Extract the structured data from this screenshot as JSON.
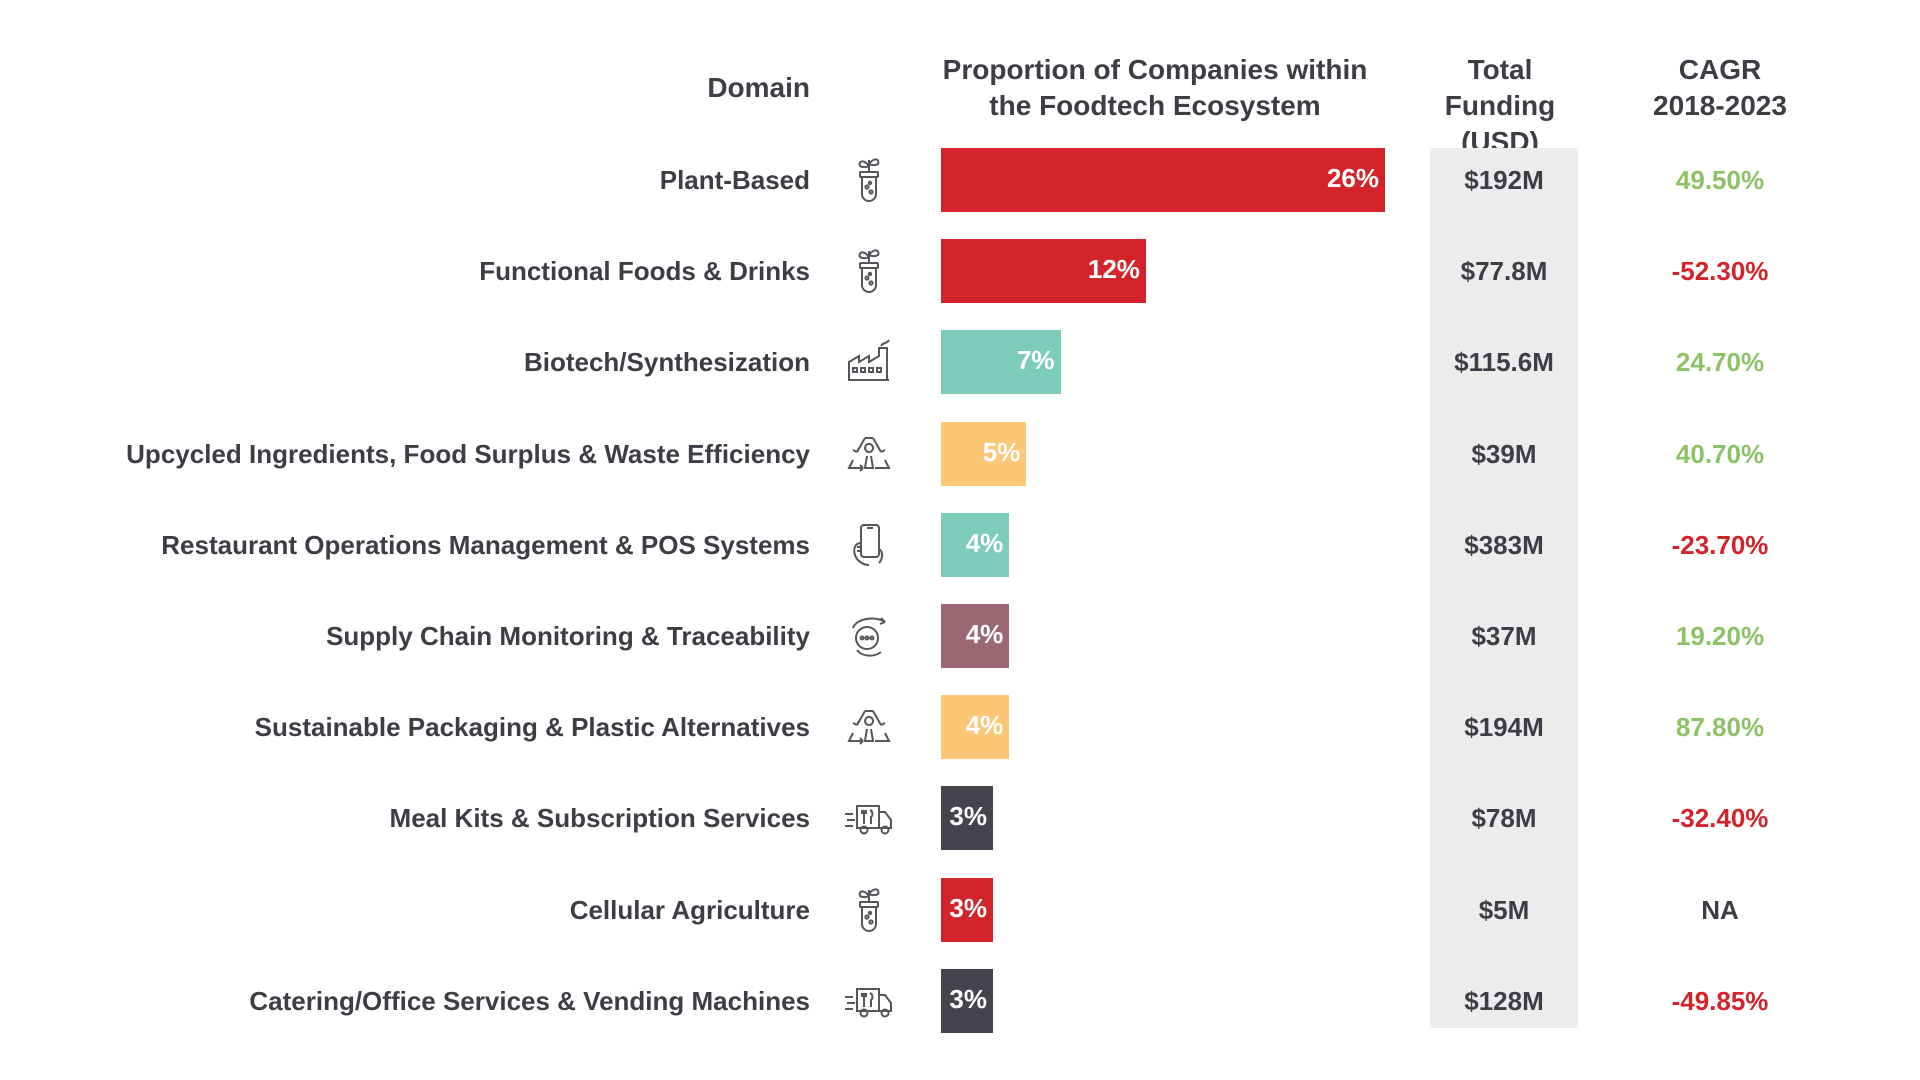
{
  "headers": {
    "domain": "Domain",
    "proportion_line1": "Proportion of Companies within",
    "proportion_line2": "the Foodtech Ecosystem",
    "funding_line1": "Total Funding",
    "funding_line2": "(USD)",
    "cagr_line1": "CAGR",
    "cagr_line2": "2018-2023"
  },
  "colors": {
    "red": "#d3242c",
    "teal": "#7dcbb9",
    "orange": "#fbc675",
    "mauve": "#9a6774",
    "dark": "#44444f",
    "positive": "#8cc265",
    "negative": "#d3242c",
    "neutral": "#3d3d45"
  },
  "chart_data": {
    "type": "bar",
    "orientation": "horizontal",
    "categories": [
      "Plant-Based",
      "Functional Foods & Drinks",
      "Biotech/Synthesization",
      "Upcycled Ingredients, Food Surplus & Waste Efficiency",
      "Restaurant Operations Management & POS Systems",
      "Supply Chain Monitoring & Traceability",
      "Sustainable Packaging & Plastic Alternatives",
      "Meal Kits & Subscription Services",
      "Cellular Agriculture",
      "Catering/Office Services & Vending Machines"
    ],
    "values": [
      26,
      12,
      7,
      5,
      4,
      4,
      4,
      3,
      3,
      3
    ],
    "value_labels": [
      "26%",
      "12%",
      "7%",
      "5%",
      "4%",
      "4%",
      "4%",
      "3%",
      "3%",
      "3%"
    ],
    "bar_colors": [
      "red",
      "red",
      "teal",
      "orange",
      "teal",
      "mauve",
      "orange",
      "dark",
      "red",
      "dark"
    ],
    "icons": [
      "plant-test-tube-icon",
      "plant-test-tube-icon",
      "factory-icon",
      "recycle-icon",
      "smartphone-hand-icon",
      "supply-chain-icon",
      "recycle-icon",
      "delivery-truck-icon",
      "plant-test-tube-icon",
      "delivery-truck-icon"
    ],
    "total_funding": [
      "$192M",
      "$77.8M",
      "$115.6M",
      "$39M",
      "$383M",
      "$37M",
      "$194M",
      "$78M",
      "$5M",
      "$128M"
    ],
    "cagr": [
      "49.50%",
      "-52.30%",
      "24.70%",
      "40.70%",
      "-23.70%",
      "19.20%",
      "87.80%",
      "-32.40%",
      "NA",
      "-49.85%"
    ],
    "xlim": [
      0,
      26
    ],
    "grid": false,
    "legend": "none"
  }
}
